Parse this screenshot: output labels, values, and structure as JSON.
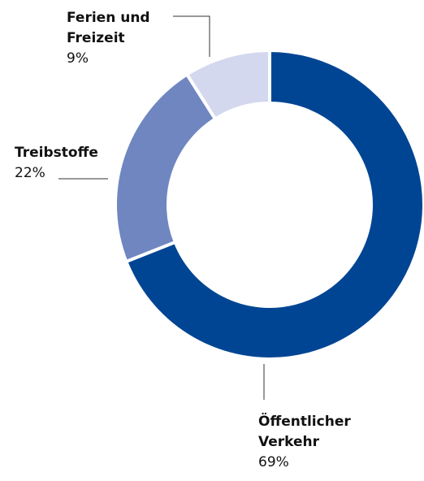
{
  "chart_data": {
    "type": "pie",
    "donut": true,
    "categories": [
      "Öffentlicher Verkehr",
      "Treibstoffe",
      "Ferien und Freizeit"
    ],
    "values": [
      69,
      22,
      9
    ],
    "value_labels": [
      "69%",
      "22%",
      "9%"
    ],
    "colors": [
      "#004593",
      "#6f86c0",
      "#d3d8ee"
    ]
  }
}
